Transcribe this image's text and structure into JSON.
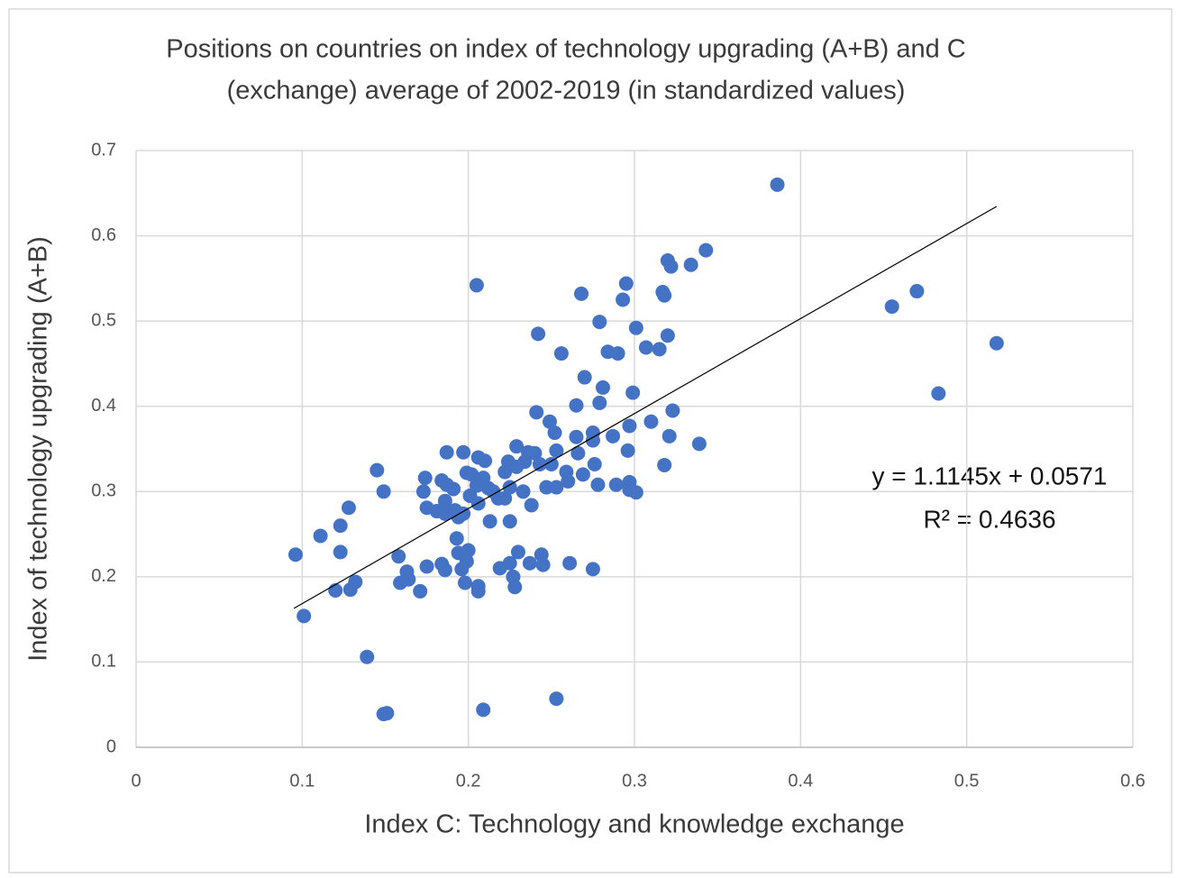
{
  "chart_data": {
    "type": "scatter",
    "title": [
      "Positions on countries on index of technology upgrading (A+B) and C",
      "(exchange) average of 2002-2019 (in standardized values)"
    ],
    "xlabel": "Index C: Technology and knowledge exchange",
    "ylabel": "Index of technology upgrading (A+B)",
    "color": "#4472c4",
    "grid": true,
    "xlim": [
      0,
      0.6
    ],
    "ylim": [
      0,
      0.7
    ],
    "xticks": [
      0,
      0.1,
      0.2,
      0.3,
      0.4,
      0.5,
      0.6
    ],
    "yticks": [
      0,
      0.1,
      0.2,
      0.3,
      0.4,
      0.5,
      0.6,
      0.7
    ],
    "x": [
      0.096,
      0.101,
      0.111,
      0.123,
      0.123,
      0.12,
      0.128,
      0.129,
      0.132,
      0.139,
      0.145,
      0.149,
      0.149,
      0.151,
      0.158,
      0.159,
      0.163,
      0.164,
      0.171,
      0.173,
      0.174,
      0.175,
      0.175,
      0.181,
      0.184,
      0.186,
      0.184,
      0.187,
      0.187,
      0.186,
      0.186,
      0.191,
      0.192,
      0.193,
      0.194,
      0.196,
      0.194,
      0.197,
      0.197,
      0.198,
      0.199,
      0.2,
      0.199,
      0.202,
      0.201,
      0.205,
      0.206,
      0.205,
      0.206,
      0.206,
      0.206,
      0.209,
      0.21,
      0.209,
      0.212,
      0.213,
      0.215,
      0.218,
      0.219,
      0.222,
      0.222,
      0.224,
      0.225,
      0.225,
      0.227,
      0.228,
      0.229,
      0.229,
      0.23,
      0.233,
      0.234,
      0.236,
      0.237,
      0.238,
      0.241,
      0.24,
      0.242,
      0.243,
      0.244,
      0.245,
      0.247,
      0.249,
      0.25,
      0.252,
      0.253,
      0.253,
      0.253,
      0.256,
      0.259,
      0.26,
      0.261,
      0.265,
      0.265,
      0.266,
      0.268,
      0.269,
      0.27,
      0.275,
      0.275,
      0.276,
      0.275,
      0.279,
      0.279,
      0.278,
      0.281,
      0.284,
      0.287,
      0.289,
      0.29,
      0.293,
      0.295,
      0.296,
      0.297,
      0.297,
      0.297,
      0.299,
      0.301,
      0.301,
      0.307,
      0.31,
      0.315,
      0.318,
      0.317,
      0.318,
      0.32,
      0.32,
      0.322,
      0.321,
      0.323,
      0.334,
      0.339,
      0.343,
      0.386,
      0.455,
      0.47,
      0.483,
      0.518,
      0.225
    ],
    "values": [
      0.226,
      0.154,
      0.248,
      0.26,
      0.229,
      0.184,
      0.281,
      0.185,
      0.194,
      0.106,
      0.325,
      0.3,
      0.039,
      0.04,
      0.224,
      0.193,
      0.206,
      0.197,
      0.183,
      0.3,
      0.316,
      0.281,
      0.212,
      0.277,
      0.313,
      0.274,
      0.215,
      0.346,
      0.308,
      0.289,
      0.208,
      0.303,
      0.278,
      0.245,
      0.228,
      0.209,
      0.27,
      0.346,
      0.274,
      0.193,
      0.218,
      0.231,
      0.322,
      0.32,
      0.295,
      0.542,
      0.34,
      0.307,
      0.286,
      0.189,
      0.183,
      0.044,
      0.336,
      0.316,
      0.304,
      0.265,
      0.3,
      0.292,
      0.21,
      0.323,
      0.292,
      0.335,
      0.265,
      0.216,
      0.2,
      0.188,
      0.353,
      0.329,
      0.229,
      0.3,
      0.335,
      0.346,
      0.216,
      0.284,
      0.393,
      0.345,
      0.485,
      0.332,
      0.226,
      0.214,
      0.305,
      0.382,
      0.332,
      0.369,
      0.348,
      0.057,
      0.305,
      0.462,
      0.323,
      0.312,
      0.216,
      0.401,
      0.364,
      0.345,
      0.532,
      0.32,
      0.434,
      0.369,
      0.36,
      0.332,
      0.209,
      0.499,
      0.404,
      0.308,
      0.422,
      0.464,
      0.365,
      0.308,
      0.462,
      0.525,
      0.544,
      0.348,
      0.377,
      0.302,
      0.311,
      0.416,
      0.299,
      0.492,
      0.469,
      0.382,
      0.467,
      0.53,
      0.534,
      0.331,
      0.483,
      0.571,
      0.564,
      0.365,
      0.395,
      0.566,
      0.356,
      0.583,
      0.66,
      0.517,
      0.535,
      0.415,
      0.474,
      0.305
    ],
    "trendline": {
      "slope": 1.1145,
      "intercept": 0.0571,
      "x_range": [
        0.095,
        0.518
      ],
      "equation": "y = 1.1145x + 0.0571",
      "r_squared": "R² = 0.4636"
    }
  }
}
